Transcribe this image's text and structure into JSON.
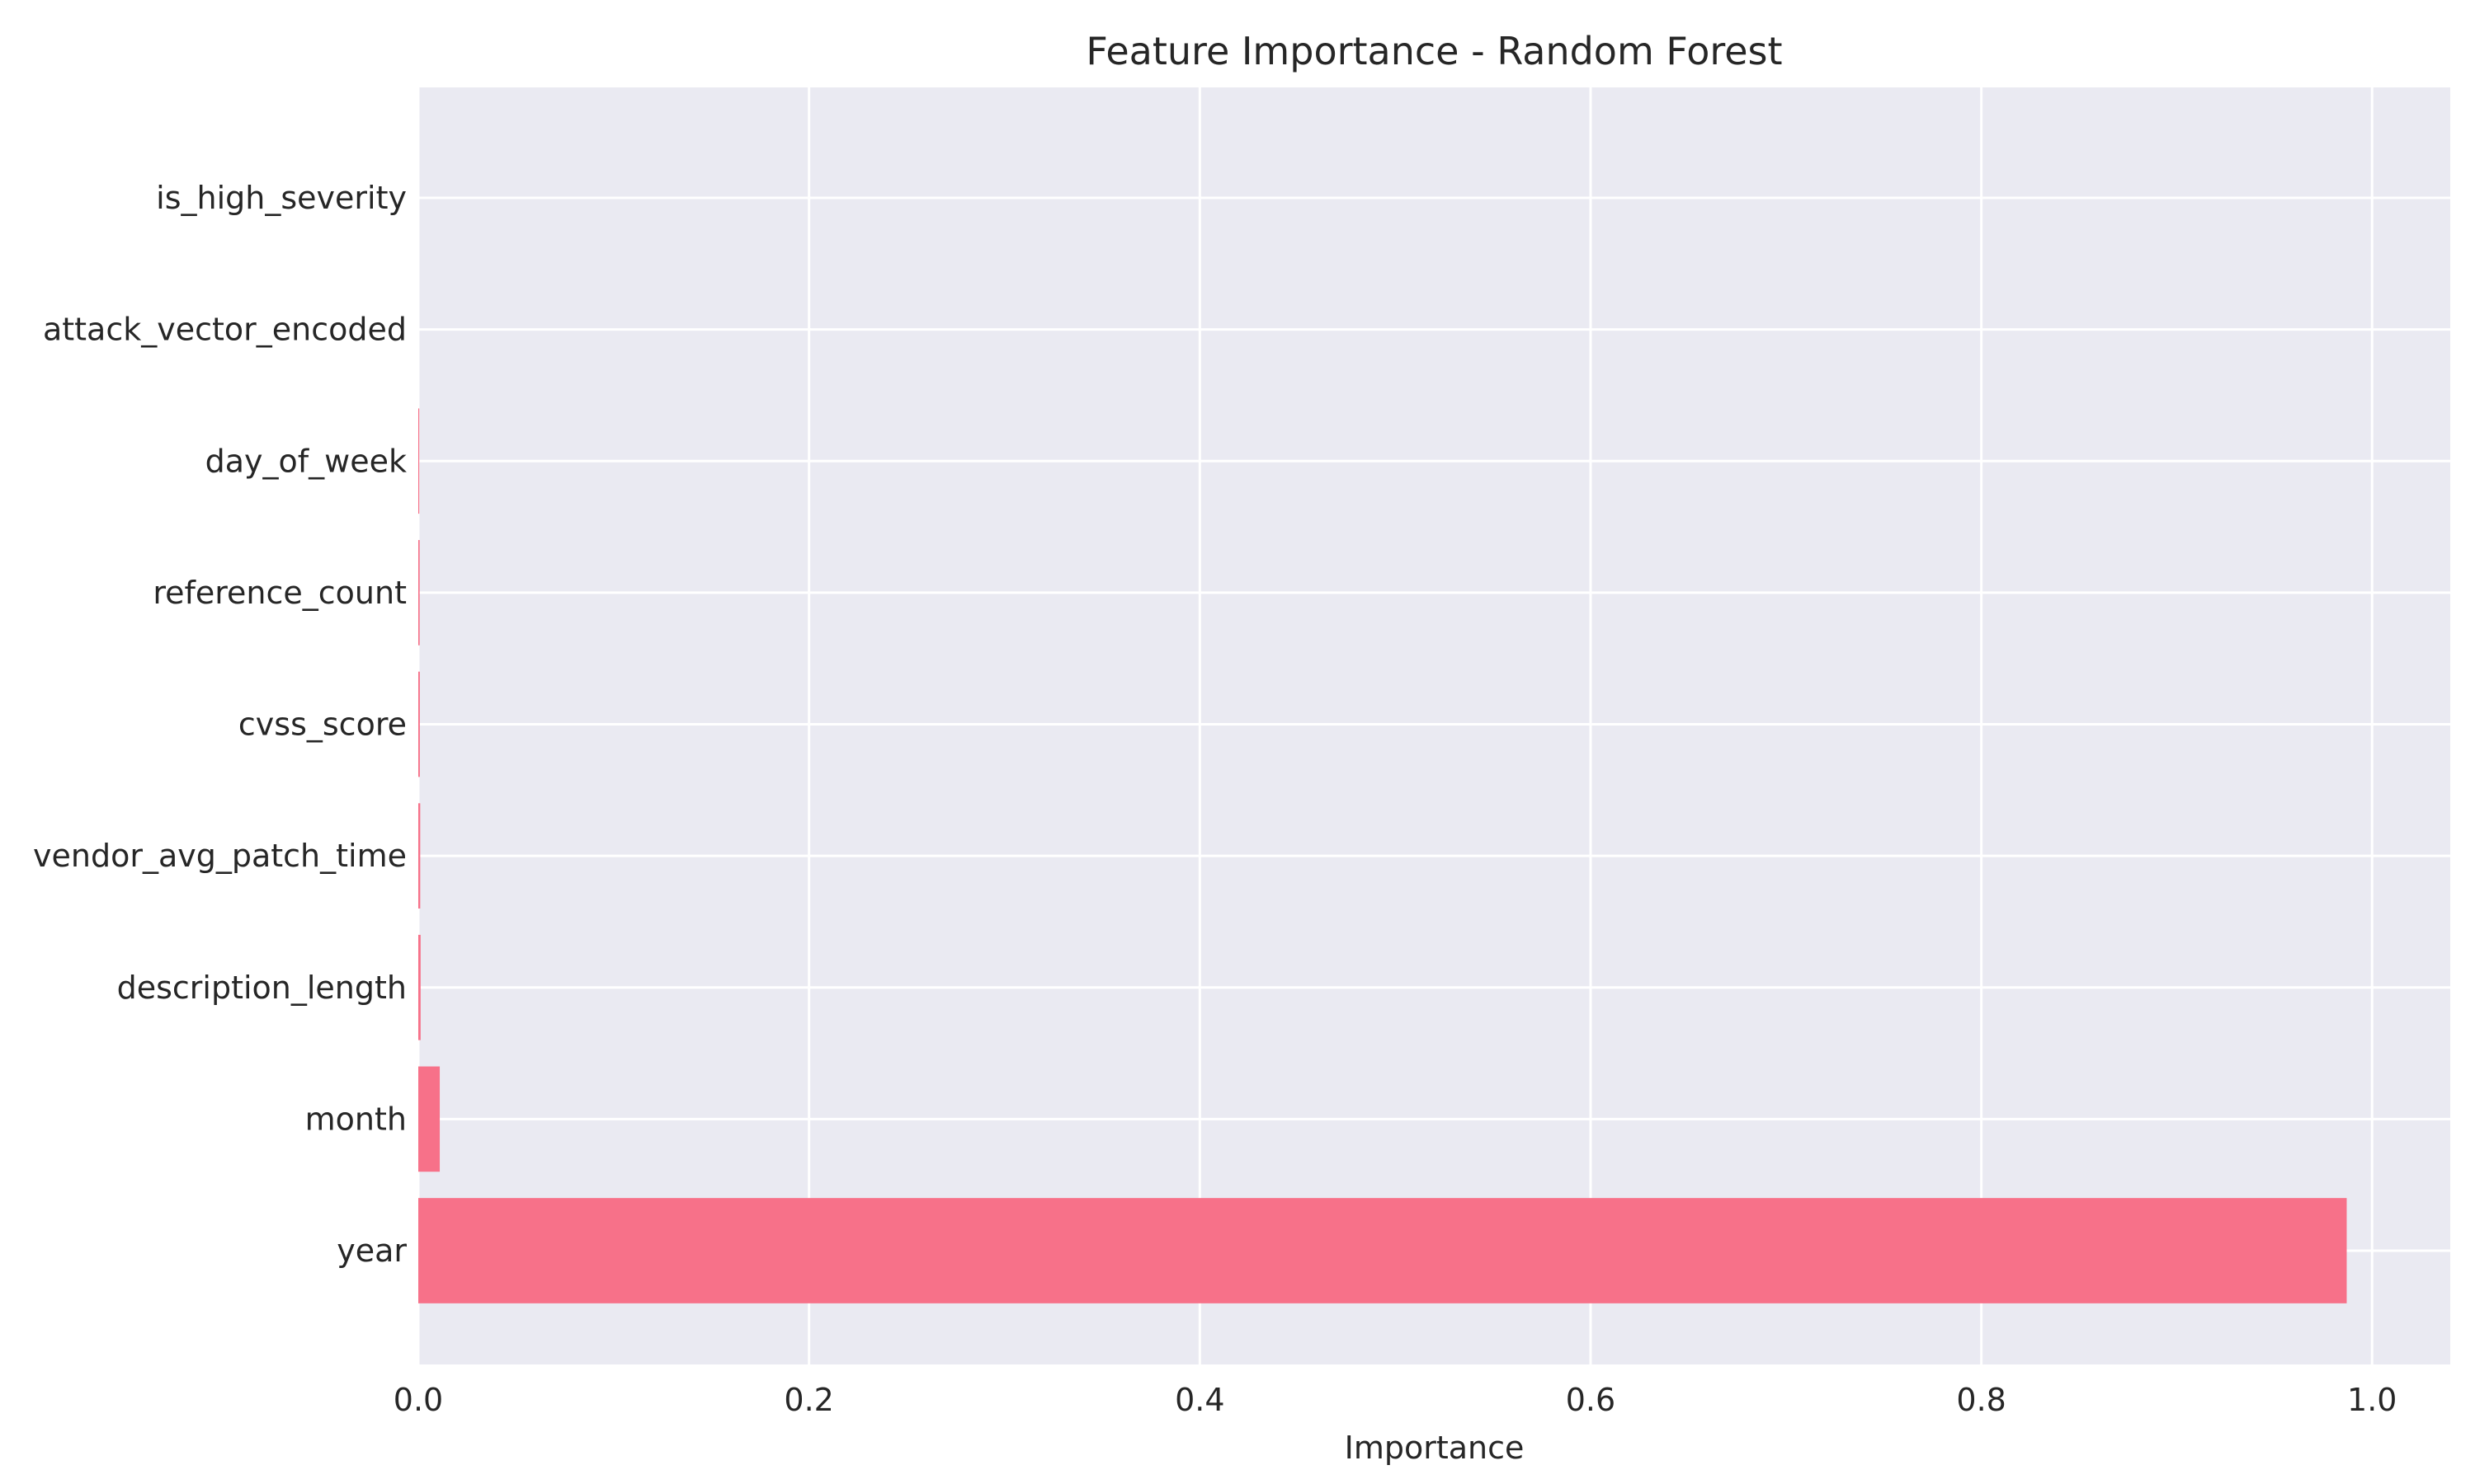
{
  "chart_data": {
    "type": "bar",
    "orientation": "horizontal",
    "title": "Feature Importance - Random Forest",
    "xlabel": "Importance",
    "ylabel": "",
    "xlim": [
      0,
      1.04
    ],
    "xticks": [
      "0.0",
      "0.2",
      "0.4",
      "0.6",
      "0.8",
      "1.0"
    ],
    "xtick_values": [
      0,
      0.2,
      0.4,
      0.6,
      0.8,
      1.0
    ],
    "grid": true,
    "categories": [
      "year",
      "month",
      "description_length",
      "vendor_avg_patch_time",
      "cvss_score",
      "reference_count",
      "day_of_week",
      "attack_vector_encoded",
      "is_high_severity"
    ],
    "values": [
      0.987,
      0.011,
      0.0012,
      0.001,
      0.0008,
      0.0007,
      0.0005,
      0.0,
      0.0
    ],
    "bar_color": "#f77189",
    "background_color": "#eaeaf2"
  }
}
